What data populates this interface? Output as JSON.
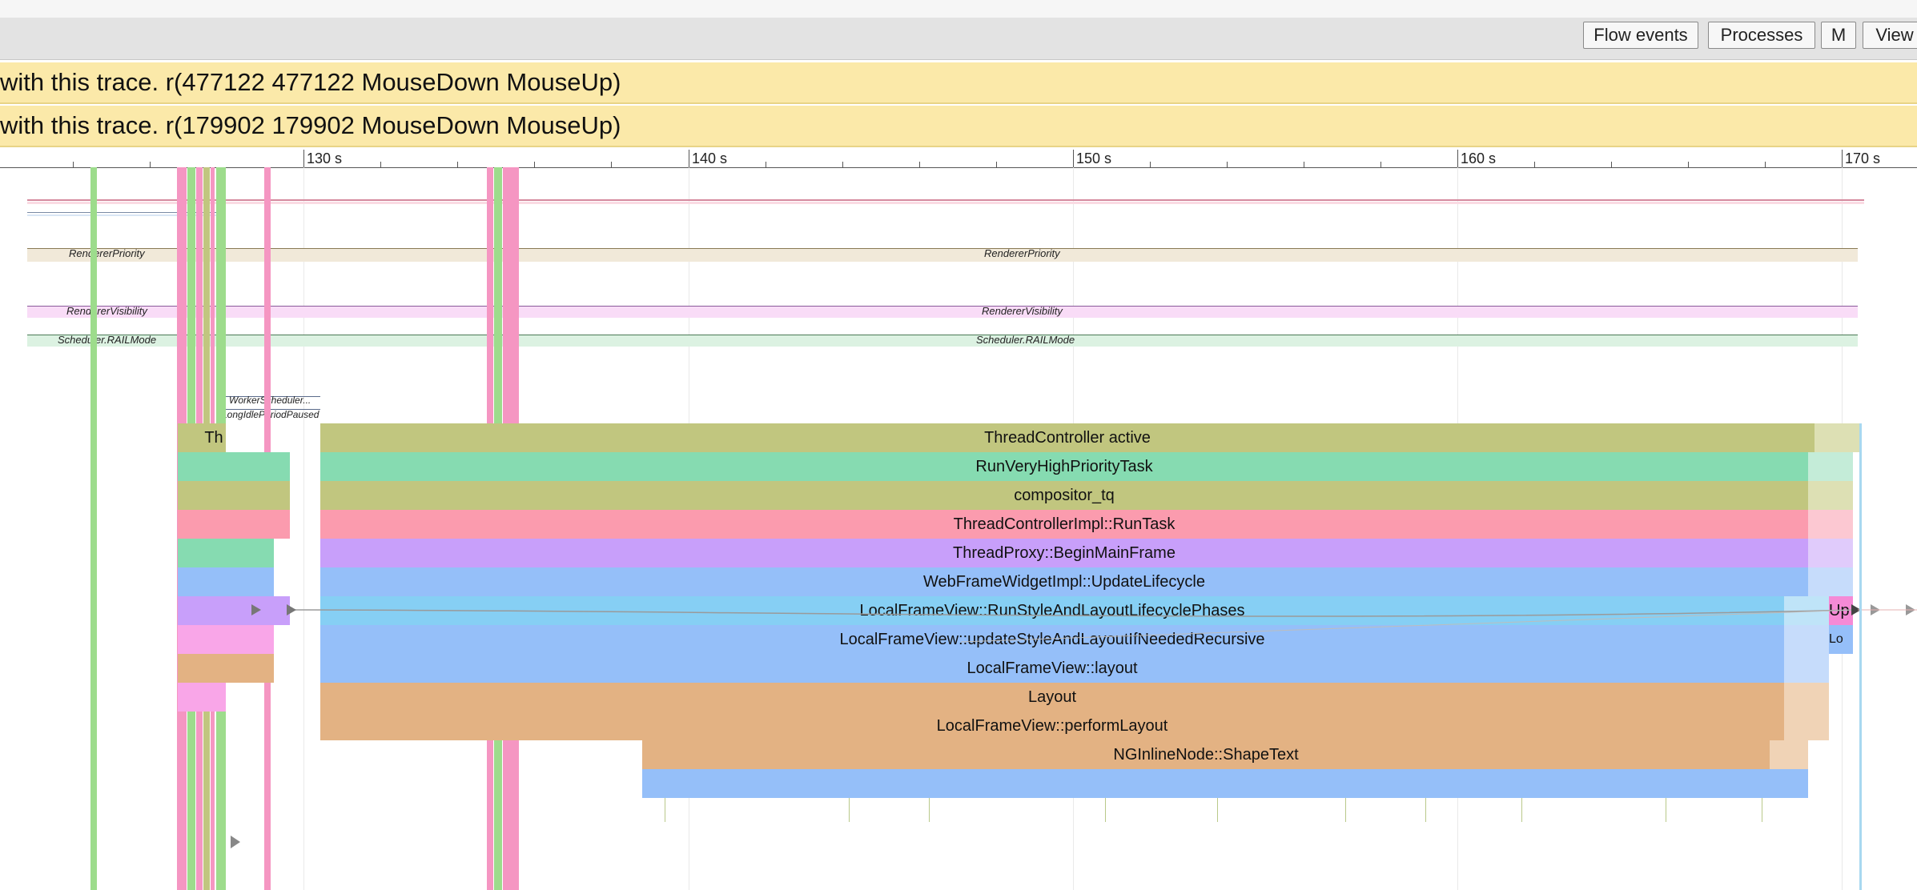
{
  "toolbar": {
    "buttons": [
      {
        "label": "Flow events"
      },
      {
        "label": "Processes"
      },
      {
        "label": "M"
      },
      {
        "label": "View"
      }
    ]
  },
  "alerts": [
    {
      "text": "with this trace. r(477122 477122 MouseDown MouseUp)"
    },
    {
      "text": "with this trace. r(179902 179902 MouseDown MouseUp)"
    }
  ],
  "ruler": {
    "labels": [
      "130 s",
      "140 s",
      "150 s",
      "160 s",
      "170 s"
    ]
  },
  "tracks": {
    "renderer_priority": [
      "RendererPriority",
      "RendererPriority"
    ],
    "renderer_visibility": [
      "RendererVisibility",
      "RendererVisibility"
    ],
    "rail_mode": [
      "Scheduler.RAILMode",
      "Scheduler.RAILMode"
    ],
    "worker_scheduler": "WorkerScheduler...",
    "long_idle": "LongIdlePeriodPaused"
  },
  "slices": {
    "th_short": "Th",
    "thread_controller_active": "ThreadController active",
    "run_very_high": "RunVeryHighPriorityTask",
    "compositor_tq": "compositor_tq",
    "run_task": "ThreadControllerImpl::RunTask",
    "begin_main_frame": "ThreadProxy::BeginMainFrame",
    "update_lifecycle": "WebFrameWidgetImpl::UpdateLifecycle",
    "run_style_layout": "LocalFrameView::RunStyleAndLayoutLifecyclePhases",
    "update_style_recursive": "LocalFrameView::updateStyleAndLayoutIfNeededRecursive",
    "frame_layout": "LocalFrameView::layout",
    "layout": "Layout",
    "perform_layout": "LocalFrameView::performLayout",
    "shape_text": "NGInlineNode::ShapeText",
    "up_short": "Up",
    "lo_short": "Lo"
  },
  "colors": {
    "olive": "#c1c67f",
    "green": "#86dbb1",
    "pink": "#fb9bae",
    "purple": "#c89ffa",
    "blue": "#95bff9",
    "lightblue": "#86cff4",
    "tan": "#e3b283",
    "alert_bg": "#fbe9a9"
  }
}
